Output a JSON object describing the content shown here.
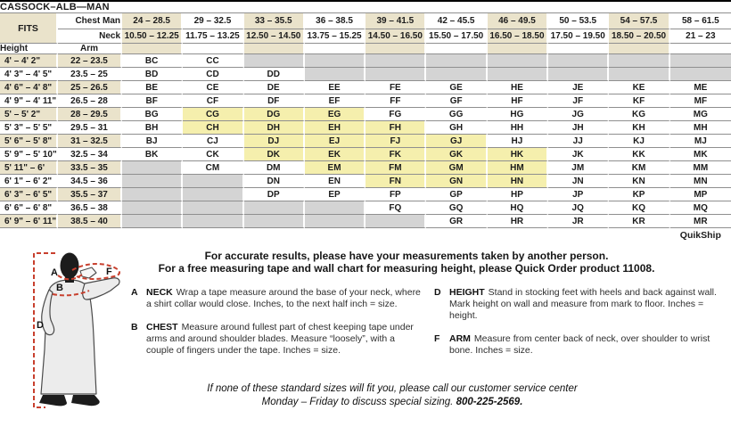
{
  "title": "CASSOCK–ALB—MAN",
  "table": {
    "fits_label": "FITS",
    "chest_label": "Chest Man",
    "neck_label": "Neck",
    "height_label": "Height",
    "arm_label": "Arm",
    "quikship_label": "QuikShip",
    "columns": [
      {
        "chest": "24 – 28.5",
        "neck": "10.50 – 12.25"
      },
      {
        "chest": "29 – 32.5",
        "neck": "11.75 – 13.25"
      },
      {
        "chest": "33 – 35.5",
        "neck": "12.50 – 14.50"
      },
      {
        "chest": "36 – 38.5",
        "neck": "13.75 – 15.25"
      },
      {
        "chest": "39 – 41.5",
        "neck": "14.50 – 16.50"
      },
      {
        "chest": "42 – 45.5",
        "neck": "15.50 – 17.50"
      },
      {
        "chest": "46 – 49.5",
        "neck": "16.50 – 18.50"
      },
      {
        "chest": "50 – 53.5",
        "neck": "17.50 – 19.50"
      },
      {
        "chest": "54 – 57.5",
        "neck": "18.50 – 20.50"
      },
      {
        "chest": "58 – 61.5",
        "neck": "21 – 23"
      }
    ],
    "rows": [
      {
        "height": "4' – 4' 2\"",
        "arm": "22 – 23.5",
        "cells": [
          "BC",
          "CC",
          "",
          "",
          "",
          "",
          "",
          "",
          "",
          ""
        ]
      },
      {
        "height": "4' 3\" – 4' 5\"",
        "arm": "23.5 – 25",
        "cells": [
          "BD",
          "CD",
          "DD",
          "",
          "",
          "",
          "",
          "",
          "",
          ""
        ]
      },
      {
        "height": "4' 6\" – 4' 8\"",
        "arm": "25 – 26.5",
        "cells": [
          "BE",
          "CE",
          "DE",
          "EE",
          "FE",
          "GE",
          "HE",
          "JE",
          "KE",
          "ME"
        ]
      },
      {
        "height": "4' 9\" – 4' 11\"",
        "arm": "26.5 – 28",
        "cells": [
          "BF",
          "CF",
          "DF",
          "EF",
          "FF",
          "GF",
          "HF",
          "JF",
          "KF",
          "MF"
        ]
      },
      {
        "height": "5' – 5' 2\"",
        "arm": "28 – 29.5",
        "cells": [
          "BG",
          "CG*",
          "DG*",
          "EG*",
          "FG",
          "GG",
          "HG",
          "JG",
          "KG",
          "MG"
        ]
      },
      {
        "height": "5' 3\" – 5' 5\"",
        "arm": "29.5 – 31",
        "cells": [
          "BH",
          "CH*",
          "DH*",
          "EH*",
          "FH*",
          "GH",
          "HH",
          "JH",
          "KH",
          "MH"
        ]
      },
      {
        "height": "5' 6\" – 5' 8\"",
        "arm": "31 – 32.5",
        "cells": [
          "BJ",
          "CJ",
          "DJ*",
          "EJ*",
          "FJ*",
          "GJ*",
          "HJ",
          "JJ",
          "KJ",
          "MJ"
        ]
      },
      {
        "height": "5' 9\" – 5' 10\"",
        "arm": "32.5 – 34",
        "cells": [
          "BK",
          "CK",
          "DK*",
          "EK*",
          "FK*",
          "GK*",
          "HK*",
          "JK",
          "KK",
          "MK"
        ]
      },
      {
        "height": "5' 11\" – 6'",
        "arm": "33.5 – 35",
        "cells": [
          "",
          "CM",
          "DM",
          "EM*",
          "FM*",
          "GM*",
          "HM*",
          "JM",
          "KM",
          "MM"
        ]
      },
      {
        "height": "6' 1\" – 6' 2\"",
        "arm": "34.5 – 36",
        "cells": [
          "",
          "",
          "DN",
          "EN",
          "FN*",
          "GN*",
          "HN*",
          "JN",
          "KN",
          "MN"
        ]
      },
      {
        "height": "6' 3\" – 6' 5\"",
        "arm": "35.5 – 37",
        "cells": [
          "",
          "",
          "DP",
          "EP",
          "FP",
          "GP",
          "HP",
          "JP",
          "KP",
          "MP"
        ]
      },
      {
        "height": "6' 6\" – 6' 8\"",
        "arm": "36.5 – 38",
        "cells": [
          "",
          "",
          "",
          "",
          "FQ",
          "GQ",
          "HQ",
          "JQ",
          "KQ",
          "MQ"
        ]
      },
      {
        "height": "6' 9\" – 6' 11\"",
        "arm": "38.5 – 40",
        "cells": [
          "",
          "",
          "",
          "",
          "",
          "GR",
          "HR",
          "JR",
          "KR",
          "MR"
        ]
      }
    ]
  },
  "notes": {
    "line1": "For accurate results, please have your measurements taken by another person.",
    "line2": "For a free measuring tape and wall chart for measuring height, please Quick Order product 11008."
  },
  "instructions": [
    {
      "key": "A",
      "term": "NECK",
      "text": "Wrap a tape measure around the base of your neck, where a shirt collar would close. Inches, to the next half inch = size."
    },
    {
      "key": "B",
      "term": "CHEST",
      "text": "Measure around fullest part of chest keeping tape under arms and around shoulder blades. Measure “loosely”, with a couple of fingers under the tape. Inches = size."
    },
    {
      "key": "D",
      "term": "HEIGHT",
      "text": "Stand in stocking feet with heels and back against wall. Mark height on wall and measure from mark to floor. Inches = height."
    },
    {
      "key": "F",
      "term": "ARM",
      "text": "Measure from center back of neck, over shoulder to wrist bone. Inches = size."
    }
  ],
  "footer": {
    "line1": "If none of these standard sizes will fit you, please call our customer service center",
    "line2": "Monday – Friday to discuss special sizing.",
    "phone": "800-225-2569."
  },
  "figure": {
    "labels": [
      "A",
      "B",
      "D",
      "F"
    ]
  },
  "colors": {
    "beige": "#eae3cb",
    "quikship_yellow": "#f5efad",
    "unavailable_gray": "#d4d4d4",
    "line_gray": "#8f8f8f",
    "measure_red": "#c8402e"
  }
}
